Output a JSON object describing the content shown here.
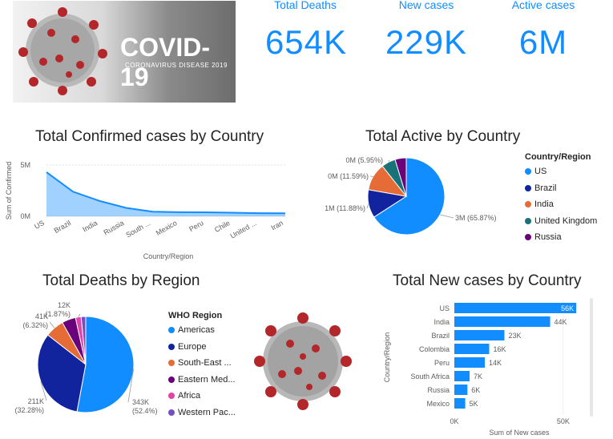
{
  "banner": {
    "title": "COVID-19",
    "subtitle": "CORONAVIRUS DISEASE 2019"
  },
  "kpis": [
    {
      "label": "Total Deaths",
      "value": "654K"
    },
    {
      "label": "New cases",
      "value": "229K"
    },
    {
      "label": "Active cases",
      "value": "6M"
    }
  ],
  "colors": {
    "accent": "#118DFF",
    "navy": "#12239E",
    "orange": "#E66C37",
    "teal": "#197278",
    "purple": "#6B007B",
    "pink": "#E044A7",
    "violet": "#744EC2"
  },
  "chart_data": [
    {
      "type": "area",
      "title": "Total Confirmed cases by Country",
      "xlabel": "Country/Region",
      "ylabel": "Sum of Confirmed",
      "categories": [
        "US",
        "Brazil",
        "India",
        "Russia",
        "South ...",
        "Mexico",
        "Peru",
        "Chile",
        "United ...",
        "Iran"
      ],
      "values": [
        4300000,
        2400000,
        1500000,
        820000,
        450000,
        400000,
        390000,
        350000,
        300000,
        290000
      ],
      "yticks": [
        "5M",
        "0M"
      ],
      "ylim": [
        0,
        5000000
      ]
    },
    {
      "type": "pie",
      "title": "Total Active by Country",
      "legend_title": "Country/Region",
      "categories": [
        "US",
        "Brazil",
        "India",
        "United Kingdom",
        "Russia"
      ],
      "values": [
        65.87,
        11.88,
        11.59,
        5.95,
        4.71
      ],
      "labels": [
        "3M (65.87%)",
        "1M (11.88%)",
        "0M (11.59%)",
        "0M (5.95%)",
        ""
      ],
      "colors": [
        "#118DFF",
        "#12239E",
        "#E66C37",
        "#197278",
        "#6B007B"
      ]
    },
    {
      "type": "pie",
      "title": "Total Deaths by Region",
      "legend_title": "WHO Region",
      "categories": [
        "Americas",
        "Europe",
        "South-East ...",
        "Eastern Med...",
        "Africa",
        "Western Pac..."
      ],
      "values": [
        52.4,
        32.28,
        6.32,
        4.6,
        1.87,
        1.53
      ],
      "labels": [
        "343K\n(52.4%)",
        "211K\n(32.28%)",
        "41K\n(6.32%)",
        "",
        "12K\n(1.87%)",
        ""
      ],
      "colors": [
        "#118DFF",
        "#12239E",
        "#E66C37",
        "#6B007B",
        "#E044A7",
        "#744EC2"
      ]
    },
    {
      "type": "bar",
      "orientation": "horizontal",
      "title": "Total New cases by Country",
      "xlabel": "Sum of New cases",
      "ylabel": "Country/Region",
      "categories": [
        "US",
        "India",
        "Brazil",
        "Colombia",
        "Peru",
        "South Africa",
        "Russia",
        "Mexico"
      ],
      "values": [
        56000,
        44000,
        23000,
        16000,
        14000,
        7000,
        6000,
        5000
      ],
      "value_labels": [
        "56K",
        "44K",
        "23K",
        "16K",
        "14K",
        "7K",
        "6K",
        "5K"
      ],
      "xticks": [
        "0K",
        "50K"
      ],
      "xlim": [
        0,
        60000
      ]
    }
  ]
}
